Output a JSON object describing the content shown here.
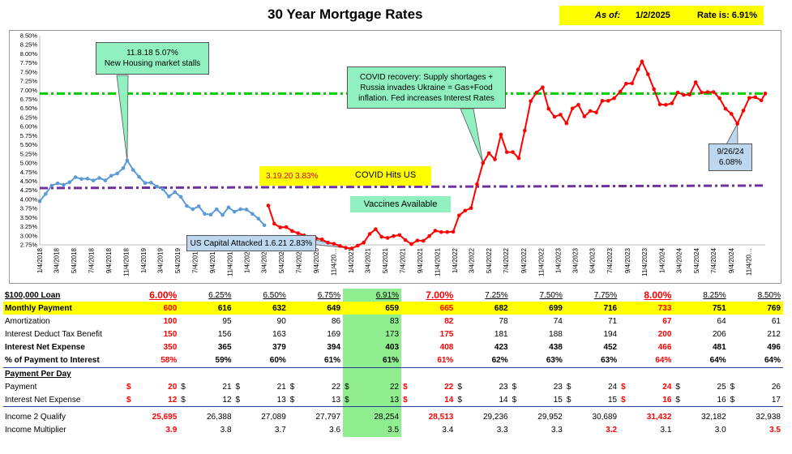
{
  "header": {
    "title": "30 Year Mortgage Rates",
    "asof_label": "As of:",
    "asof_date": "1/2/2025",
    "rate_text": "Rate is: 6.91%"
  },
  "chart_data": {
    "type": "line",
    "title": "30 Year Mortgage Rates",
    "y_ticks": [
      "8.50%",
      "8.25%",
      "8.00%",
      "7.75%",
      "7.50%",
      "7.25%",
      "7.00%",
      "6.75%",
      "6.50%",
      "6.25%",
      "6.00%",
      "5.75%",
      "5.50%",
      "5.25%",
      "5.00%",
      "4.75%",
      "4.50%",
      "4.25%",
      "4.00%",
      "3.75%",
      "3.50%",
      "3.25%",
      "3.00%",
      "2.75%"
    ],
    "ylim": [
      2.75,
      8.5
    ],
    "x_ticks": [
      "1/4/2018",
      "3/4/2018",
      "5/4/2018",
      "7/4/2018",
      "9/4/2018",
      "11/4/2018",
      "1/4/2019",
      "3/4/2019",
      "5/4/2019",
      "7/4/2019",
      "9/4/2019",
      "11/4/2019",
      "1/4/2020",
      "3/4/2020",
      "5/4/2020",
      "7/4/2020",
      "9/4/2020",
      "11/4/2020",
      "1/4/2021",
      "3/4/2021",
      "5/4/2021",
      "7/4/2021",
      "9/4/2021",
      "11/4/2021",
      "1/4/2022",
      "3/4/2022",
      "5/4/2022",
      "7/4/2022",
      "9/4/2022",
      "11/4/2022",
      "1/4/2023",
      "3/4/2023",
      "5/4/2023",
      "7/4/2023",
      "9/4/2023",
      "11/4/2023",
      "1/4/2024",
      "3/4/2024",
      "5/4/2024",
      "7/4/2024",
      "9/4/2024",
      "11/4/2024"
    ],
    "x_tick_display": [
      "1/4/2018",
      "3/4/2018",
      "5/4/2018",
      "7/4/2018",
      "9/4/2018",
      "11/4/2018",
      "1/4/2019",
      "3/4/2019",
      "5/4/2019",
      "7/4/2019",
      "9/4/2019",
      "11/4/2019",
      "1/4/2020",
      "3/4/2020",
      "5/4/2020",
      "7/4/2020",
      "9/4/2020",
      "11/4/20…",
      "1/4/2021",
      "3/4/2021",
      "5/4/2021",
      "7/4/2021",
      "9/4/2021",
      "11/4/2021",
      "1/4/2022",
      "3/4/2022",
      "5/4/2022",
      "7/4/2022",
      "9/4/2022",
      "11/4/2022",
      "1/4/2023",
      "3/4/2023",
      "5/4/2023",
      "7/4/2023",
      "9/4/2023",
      "11/4/2023",
      "1/4/2024",
      "3/4/2024",
      "5/4/2024",
      "7/4/2024",
      "9/4/2024",
      "11/4/20…"
    ],
    "series": [
      {
        "color": "#5b9bd5",
        "x": [
          "2018-01-04",
          "2018-01-25",
          "2018-02-15",
          "2018-03-08",
          "2018-03-29",
          "2018-04-19",
          "2018-05-10",
          "2018-05-31",
          "2018-06-21",
          "2018-07-12",
          "2018-08-02",
          "2018-08-23",
          "2018-09-13",
          "2018-10-04",
          "2018-10-25",
          "2018-11-08",
          "2018-11-29",
          "2018-12-20",
          "2019-01-10",
          "2019-01-31",
          "2019-02-21",
          "2019-03-14",
          "2019-04-04",
          "2019-04-25",
          "2019-05-16",
          "2019-06-06",
          "2019-06-27",
          "2019-07-18",
          "2019-08-08",
          "2019-08-29",
          "2019-09-19",
          "2019-10-10",
          "2019-10-31",
          "2019-11-21",
          "2019-12-12",
          "2020-01-02",
          "2020-01-23",
          "2020-02-13",
          "2020-03-05"
        ],
        "values": [
          3.95,
          4.15,
          4.38,
          4.44,
          4.4,
          4.47,
          4.61,
          4.56,
          4.57,
          4.52,
          4.59,
          4.52,
          4.65,
          4.71,
          4.86,
          5.07,
          4.81,
          4.62,
          4.45,
          4.46,
          4.35,
          4.28,
          4.08,
          4.2,
          4.07,
          3.82,
          3.73,
          3.81,
          3.6,
          3.58,
          3.73,
          3.57,
          3.78,
          3.66,
          3.73,
          3.72,
          3.6,
          3.47,
          3.29
        ]
      },
      {
        "color": "#ff0000",
        "x": [
          "2020-03-19",
          "2020-04-09",
          "2020-04-30",
          "2020-05-21",
          "2020-06-11",
          "2020-07-02",
          "2020-07-23",
          "2020-08-13",
          "2020-09-03",
          "2020-09-24",
          "2020-10-15",
          "2020-11-05",
          "2020-11-26",
          "2020-12-17",
          "2021-01-07",
          "2021-01-28",
          "2021-02-18",
          "2021-03-11",
          "2021-04-01",
          "2021-04-22",
          "2021-05-13",
          "2021-06-03",
          "2021-06-24",
          "2021-07-15",
          "2021-08-05",
          "2021-08-26",
          "2021-09-16",
          "2021-10-07",
          "2021-10-28",
          "2021-11-18",
          "2021-12-09",
          "2021-12-30",
          "2022-01-20",
          "2022-02-10",
          "2022-03-03",
          "2022-03-24",
          "2022-04-14",
          "2022-05-05",
          "2022-05-26",
          "2022-06-16",
          "2022-07-07",
          "2022-07-28",
          "2022-08-18",
          "2022-09-08",
          "2022-09-29",
          "2022-10-20",
          "2022-11-10",
          "2022-12-01",
          "2022-12-22",
          "2023-01-12",
          "2023-02-02",
          "2023-02-23",
          "2023-03-16",
          "2023-04-06",
          "2023-04-27",
          "2023-05-18",
          "2023-06-08",
          "2023-06-29",
          "2023-07-20",
          "2023-08-10",
          "2023-08-31",
          "2023-09-21",
          "2023-10-12",
          "2023-10-26",
          "2023-11-16",
          "2023-12-07",
          "2023-12-28",
          "2024-01-18",
          "2024-02-08",
          "2024-02-29",
          "2024-03-21",
          "2024-04-11",
          "2024-05-02",
          "2024-05-23",
          "2024-06-13",
          "2024-07-04",
          "2024-07-25",
          "2024-08-15",
          "2024-09-05",
          "2024-09-26",
          "2024-10-17",
          "2024-11-07",
          "2024-11-28",
          "2024-12-19",
          "2025-01-02"
        ],
        "values": [
          3.83,
          3.33,
          3.23,
          3.24,
          3.13,
          3.07,
          3.01,
          2.96,
          2.93,
          2.9,
          2.81,
          2.78,
          2.72,
          2.67,
          2.65,
          2.73,
          2.81,
          3.05,
          3.18,
          2.97,
          2.94,
          2.99,
          3.02,
          2.88,
          2.77,
          2.87,
          2.86,
          2.99,
          3.14,
          3.1,
          3.1,
          3.11,
          3.56,
          3.69,
          3.76,
          4.42,
          5.0,
          5.27,
          5.1,
          5.78,
          5.3,
          5.3,
          5.13,
          5.89,
          6.7,
          6.94,
          7.08,
          6.49,
          6.27,
          6.33,
          6.09,
          6.5,
          6.6,
          6.28,
          6.43,
          6.39,
          6.71,
          6.71,
          6.78,
          6.96,
          7.18,
          7.19,
          7.57,
          7.79,
          7.44,
          7.03,
          6.61,
          6.6,
          6.64,
          6.94,
          6.87,
          6.88,
          7.22,
          6.94,
          6.95,
          6.95,
          6.78,
          6.49,
          6.35,
          6.08,
          6.44,
          6.79,
          6.81,
          6.72,
          6.91
        ]
      }
    ],
    "reference_lines": [
      {
        "color": "#00cc00",
        "style": "dash-dot",
        "start": [
          "2018-01-04",
          6.91
        ],
        "end": [
          "2025-01-02",
          6.91
        ]
      },
      {
        "color": "#7030a0",
        "style": "dash-dot",
        "start": [
          "2018-01-04",
          4.31
        ],
        "end": [
          "2025-01-02",
          4.38
        ]
      }
    ],
    "annotations": [
      {
        "lines": [
          "11.8.18 5.07%",
          "New Housing market stalls"
        ]
      },
      {
        "lines": [
          "COVID recovery: Supply shortages +",
          "Russia invades Ukraine = Gas+Food",
          "inflation. Fed increases Interest Rates"
        ]
      },
      {
        "date_rate": "3.19.20  3.83%",
        "text": "COVID Hits US"
      },
      {
        "text": "Vaccines Available"
      },
      {
        "text": "US Capital Attacked 1.6.21 2.83%"
      },
      {
        "lines": [
          "9/26/24",
          "6.08%"
        ]
      }
    ]
  },
  "table": {
    "columns": [
      "6.00%",
      "6.25%",
      "6.50%",
      "6.75%",
      "6.91%",
      "7.00%",
      "7.25%",
      "7.50%",
      "7.75%",
      "8.00%",
      "8.25%",
      "8.50%"
    ],
    "red_cols": [
      0,
      5,
      9
    ],
    "loan_label": "$100,000 Loan",
    "monthly_payment": {
      "label": "Monthly Payment",
      "values": [
        "600",
        "616",
        "632",
        "649",
        "659",
        "665",
        "682",
        "699",
        "716",
        "733",
        "751",
        "769"
      ]
    },
    "amortization": {
      "label": "Amortization",
      "values": [
        "100",
        "95",
        "90",
        "86",
        "83",
        "82",
        "78",
        "74",
        "71",
        "67",
        "64",
        "61"
      ]
    },
    "tax_benefit": {
      "label": "Interest Deduct Tax Benefit",
      "values": [
        "150",
        "156",
        "163",
        "169",
        "173",
        "175",
        "181",
        "188",
        "194",
        "200",
        "206",
        "212"
      ]
    },
    "net_expense": {
      "label": "Interest Net Expense",
      "values": [
        "350",
        "365",
        "379",
        "394",
        "403",
        "408",
        "423",
        "438",
        "452",
        "466",
        "481",
        "496"
      ]
    },
    "pct_interest": {
      "label": "% of Payment to Interest",
      "values": [
        "58%",
        "59%",
        "60%",
        "61%",
        "61%",
        "61%",
        "62%",
        "63%",
        "63%",
        "64%",
        "64%",
        "64%"
      ]
    },
    "per_day_label": "Payment Per Day",
    "day_payment": {
      "label": "Payment",
      "values": [
        "20",
        "21",
        "21",
        "22",
        "22",
        "22",
        "23",
        "23",
        "24",
        "24",
        "25",
        "26"
      ]
    },
    "day_net": {
      "label": "Interest Net Expense",
      "values": [
        "12",
        "12",
        "13",
        "13",
        "13",
        "14",
        "14",
        "15",
        "15",
        "16",
        "16",
        "17"
      ]
    },
    "dollar": "$",
    "income_qualify": {
      "label": "Income 2 Qualify",
      "values": [
        "25,695",
        "26,388",
        "27,089",
        "27,797",
        "28,254",
        "28,513",
        "29,236",
        "29,952",
        "30,689",
        "31,432",
        "32,182",
        "32,938"
      ]
    },
    "income_multiplier": {
      "label": "Income Multiplier",
      "values": [
        "3.9",
        "3.8",
        "3.7",
        "3.6",
        "3.5",
        "3.4",
        "3.3",
        "3.3",
        "3.2",
        "3.1",
        "3.0",
        "3.5"
      ],
      "red_cols": [
        0,
        8,
        11
      ]
    }
  }
}
